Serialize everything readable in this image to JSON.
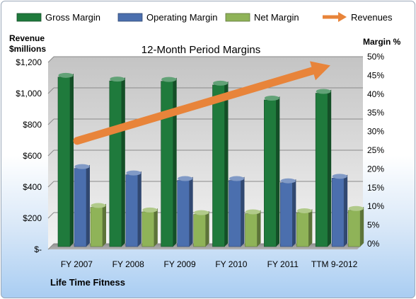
{
  "chart_data": {
    "type": "bar",
    "title": "12-Month Period Margins",
    "footer": "Life Time Fitness",
    "left_axis_title_line1": "Revenue",
    "left_axis_title_line2": "$millions",
    "right_axis_title": "Margin %",
    "categories": [
      "FY 2007",
      "FY 2008",
      "FY 2009",
      "FY 2010",
      "FY 2011",
      "TTM 9-2012"
    ],
    "left_ticks": [
      "$-",
      "$200",
      "$400",
      "$600",
      "$800",
      "$1,000",
      "$1,200"
    ],
    "right_ticks": [
      "0%",
      "5%",
      "10%",
      "15%",
      "20%",
      "25%",
      "30%",
      "35%",
      "40%",
      "45%",
      "50%"
    ],
    "ylim_left": [
      0,
      1200
    ],
    "ylim_right": [
      0,
      50
    ],
    "legend_position": "top",
    "grid": true,
    "series": [
      {
        "name": "Gross Margin",
        "axis": "right",
        "color": "#1f7a3c",
        "values": [
          45.3,
          44.3,
          44.2,
          43.2,
          39.2,
          41.0
        ]
      },
      {
        "name": "Operating Margin",
        "axis": "right",
        "color": "#4b6fae",
        "values": [
          20.9,
          19.2,
          17.7,
          17.7,
          17.1,
          18.3
        ]
      },
      {
        "name": "Net Margin",
        "axis": "right",
        "color": "#8fb358",
        "values": [
          10.5,
          9.3,
          8.6,
          8.8,
          9.1,
          9.7
        ]
      }
    ],
    "trend": {
      "name": "Revenues",
      "color": "#e8843a",
      "start": 660,
      "end": 1110
    }
  }
}
